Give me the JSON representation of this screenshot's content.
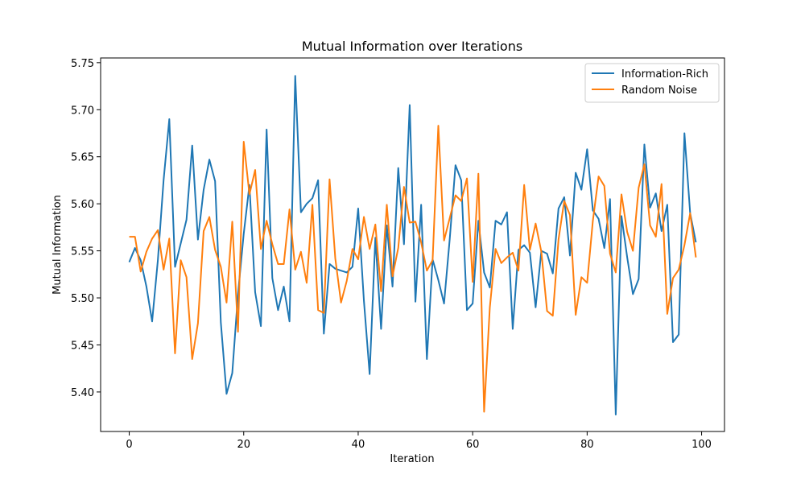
{
  "chart_data": {
    "type": "line",
    "title": "Mutual Information over Iterations",
    "xlabel": "Iteration",
    "ylabel": "Mutual Information",
    "xlim": [
      -5,
      104
    ],
    "ylim": [
      5.358,
      5.755
    ],
    "xticks": [
      0,
      20,
      40,
      60,
      80,
      100
    ],
    "yticks": [
      5.4,
      5.45,
      5.5,
      5.55,
      5.6,
      5.65,
      5.7,
      5.75
    ],
    "ytick_labels": [
      "5.40",
      "5.45",
      "5.50",
      "5.55",
      "5.60",
      "5.65",
      "5.70",
      "5.75"
    ],
    "grid": false,
    "legend_position": "top-right",
    "x": [
      0,
      1,
      2,
      3,
      4,
      5,
      6,
      7,
      8,
      9,
      10,
      11,
      12,
      13,
      14,
      15,
      16,
      17,
      18,
      19,
      20,
      21,
      22,
      23,
      24,
      25,
      26,
      27,
      28,
      29,
      30,
      31,
      32,
      33,
      34,
      35,
      36,
      37,
      38,
      39,
      40,
      41,
      42,
      43,
      44,
      45,
      46,
      47,
      48,
      49,
      50,
      51,
      52,
      53,
      54,
      55,
      56,
      57,
      58,
      59,
      60,
      61,
      62,
      63,
      64,
      65,
      66,
      67,
      68,
      69,
      70,
      71,
      72,
      73,
      74,
      75,
      76,
      77,
      78,
      79,
      80,
      81,
      82,
      83,
      84,
      85,
      86,
      87,
      88,
      89,
      90,
      91,
      92,
      93,
      94,
      95,
      96,
      97,
      98,
      99
    ],
    "series": [
      {
        "name": "Information-Rich",
        "color": "#1f77b4",
        "values": [
          5.538,
          5.553,
          5.54,
          5.512,
          5.475,
          5.54,
          5.625,
          5.69,
          5.533,
          5.558,
          5.583,
          5.662,
          5.562,
          5.615,
          5.647,
          5.624,
          5.474,
          5.398,
          5.42,
          5.504,
          5.568,
          5.62,
          5.506,
          5.47,
          5.679,
          5.521,
          5.487,
          5.512,
          5.475,
          5.736,
          5.591,
          5.6,
          5.606,
          5.625,
          5.462,
          5.536,
          5.531,
          5.529,
          5.527,
          5.533,
          5.595,
          5.497,
          5.419,
          5.564,
          5.467,
          5.577,
          5.512,
          5.638,
          5.557,
          5.705,
          5.496,
          5.599,
          5.435,
          5.541,
          5.519,
          5.494,
          5.563,
          5.641,
          5.625,
          5.487,
          5.494,
          5.582,
          5.527,
          5.511,
          5.582,
          5.578,
          5.591,
          5.467,
          5.551,
          5.556,
          5.548,
          5.49,
          5.55,
          5.547,
          5.526,
          5.595,
          5.607,
          5.545,
          5.633,
          5.615,
          5.658,
          5.593,
          5.584,
          5.553,
          5.605,
          5.376,
          5.587,
          5.543,
          5.504,
          5.52,
          5.663,
          5.596,
          5.611,
          5.571,
          5.599,
          5.453,
          5.461,
          5.675,
          5.59,
          5.559
        ]
      },
      {
        "name": "Random Noise",
        "color": "#ff7f0e",
        "values": [
          5.565,
          5.565,
          5.528,
          5.549,
          5.563,
          5.572,
          5.53,
          5.563,
          5.441,
          5.54,
          5.522,
          5.435,
          5.473,
          5.571,
          5.586,
          5.551,
          5.533,
          5.495,
          5.581,
          5.464,
          5.666,
          5.61,
          5.636,
          5.552,
          5.582,
          5.557,
          5.536,
          5.536,
          5.594,
          5.53,
          5.549,
          5.516,
          5.599,
          5.487,
          5.484,
          5.626,
          5.542,
          5.495,
          5.518,
          5.552,
          5.541,
          5.586,
          5.552,
          5.578,
          5.507,
          5.599,
          5.523,
          5.553,
          5.618,
          5.58,
          5.581,
          5.559,
          5.529,
          5.54,
          5.683,
          5.561,
          5.585,
          5.609,
          5.603,
          5.627,
          5.517,
          5.632,
          5.379,
          5.49,
          5.552,
          5.537,
          5.543,
          5.548,
          5.529,
          5.62,
          5.551,
          5.579,
          5.549,
          5.486,
          5.481,
          5.562,
          5.603,
          5.588,
          5.482,
          5.522,
          5.516,
          5.582,
          5.629,
          5.619,
          5.547,
          5.527,
          5.61,
          5.57,
          5.55,
          5.617,
          5.642,
          5.577,
          5.565,
          5.621,
          5.483,
          5.521,
          5.53,
          5.556,
          5.59,
          5.543
        ]
      }
    ]
  }
}
